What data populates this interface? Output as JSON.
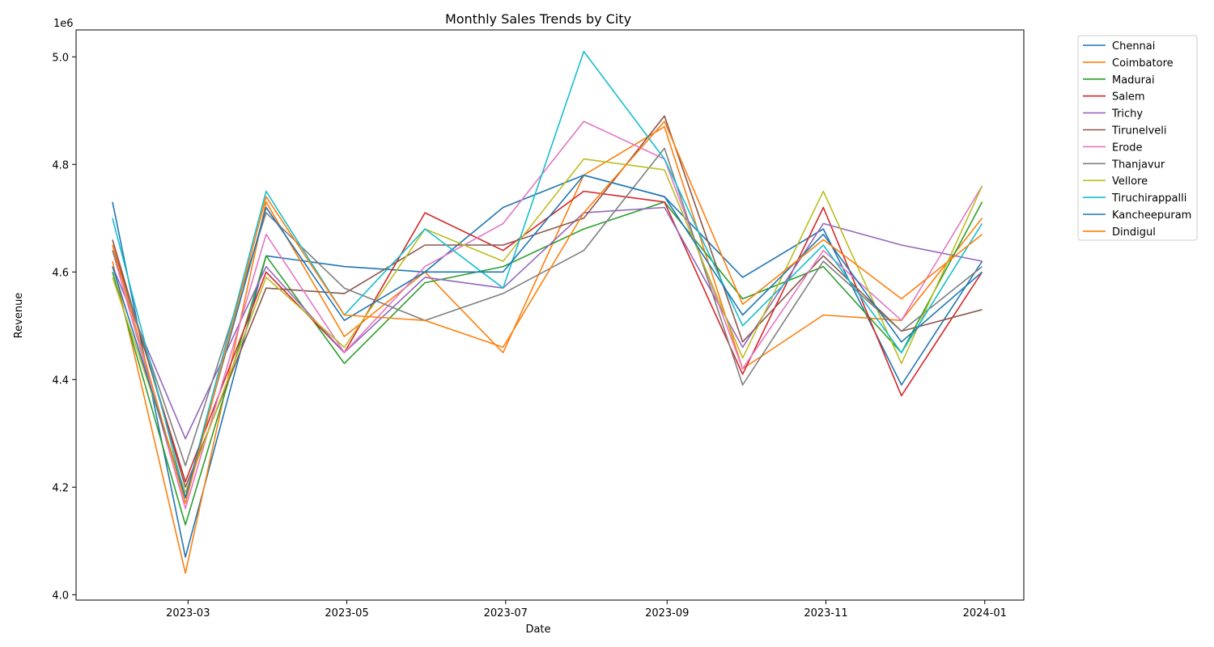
{
  "chart_data": {
    "type": "line",
    "title": "Monthly Sales Trends by City",
    "xlabel": "Date",
    "ylabel": "Revenue",
    "y_offset_label": "1e6",
    "x": [
      "2023-01-31",
      "2023-02-28",
      "2023-03-31",
      "2023-04-30",
      "2023-05-31",
      "2023-06-30",
      "2023-07-31",
      "2023-08-31",
      "2023-09-30",
      "2023-10-31",
      "2023-11-30",
      "2023-12-31"
    ],
    "x_ticks": [
      "2023-03",
      "2023-05",
      "2023-07",
      "2023-09",
      "2023-11",
      "2024-01"
    ],
    "y_ticks": [
      "4.0",
      "4.2",
      "4.4",
      "4.6",
      "4.8",
      "5.0"
    ],
    "ylim": [
      3.99,
      5.05
    ],
    "grid": false,
    "legend_position": "outside-top-right",
    "series": [
      {
        "name": "Chennai",
        "color": "#1f77b4",
        "values": [
          4.73,
          4.07,
          4.63,
          4.61,
          4.6,
          4.72,
          4.78,
          4.74,
          4.59,
          4.68,
          4.39,
          4.62
        ]
      },
      {
        "name": "Coimbatore",
        "color": "#ff7f0e",
        "values": [
          4.62,
          4.04,
          4.73,
          4.48,
          4.6,
          4.45,
          4.78,
          4.87,
          4.42,
          4.52,
          4.51,
          4.7
        ]
      },
      {
        "name": "Madurai",
        "color": "#2ca02c",
        "values": [
          4.6,
          4.13,
          4.63,
          4.43,
          4.58,
          4.61,
          4.68,
          4.73,
          4.55,
          4.61,
          4.45,
          4.73
        ]
      },
      {
        "name": "Salem",
        "color": "#d62728",
        "values": [
          4.65,
          4.21,
          4.6,
          4.45,
          4.71,
          4.64,
          4.75,
          4.73,
          4.41,
          4.72,
          4.37,
          4.6
        ]
      },
      {
        "name": "Trichy",
        "color": "#9467bd",
        "values": [
          4.61,
          4.29,
          4.61,
          4.45,
          4.59,
          4.57,
          4.71,
          4.72,
          4.46,
          4.69,
          4.65,
          4.62
        ]
      },
      {
        "name": "Tirunelveli",
        "color": "#8c564b",
        "values": [
          4.66,
          4.2,
          4.57,
          4.56,
          4.65,
          4.65,
          4.7,
          4.89,
          4.47,
          4.63,
          4.49,
          4.53
        ]
      },
      {
        "name": "Erode",
        "color": "#e377c2",
        "values": [
          4.64,
          4.16,
          4.67,
          4.45,
          4.61,
          4.69,
          4.88,
          4.81,
          4.42,
          4.64,
          4.51,
          4.76
        ]
      },
      {
        "name": "Thanjavur",
        "color": "#7f7f7f",
        "values": [
          4.64,
          4.24,
          4.71,
          4.57,
          4.51,
          4.56,
          4.64,
          4.83,
          4.39,
          4.62,
          4.49,
          4.61
        ]
      },
      {
        "name": "Vellore",
        "color": "#bcbd22",
        "values": [
          4.59,
          4.19,
          4.59,
          4.46,
          4.68,
          4.62,
          4.81,
          4.79,
          4.44,
          4.75,
          4.43,
          4.76
        ]
      },
      {
        "name": "Tiruchirappalli",
        "color": "#17becf",
        "values": [
          4.7,
          4.18,
          4.75,
          4.52,
          4.68,
          4.57,
          5.01,
          4.81,
          4.5,
          4.65,
          4.45,
          4.69
        ]
      },
      {
        "name": "Kancheepuram",
        "color": "#1f77b4",
        "values": [
          4.61,
          4.18,
          4.72,
          4.51,
          4.6,
          4.6,
          4.78,
          4.74,
          4.52,
          4.67,
          4.47,
          4.6
        ]
      },
      {
        "name": "Dindigul",
        "color": "#ff7f0e",
        "values": [
          4.65,
          4.17,
          4.74,
          4.52,
          4.51,
          4.46,
          4.71,
          4.88,
          4.54,
          4.66,
          4.55,
          4.67
        ]
      }
    ]
  }
}
